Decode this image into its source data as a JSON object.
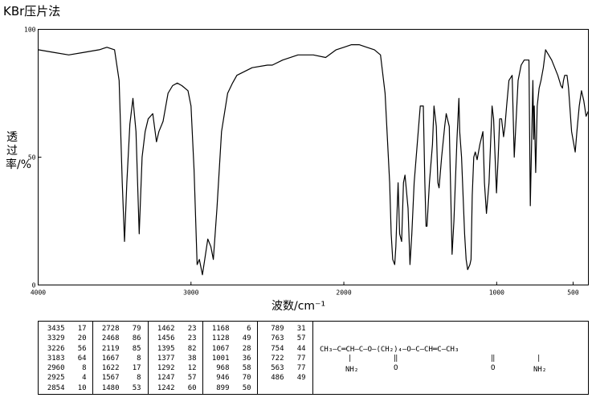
{
  "title": "KBr压片法",
  "chart_data": {
    "type": "line",
    "ylabel": "透过率/%",
    "xlabel": "波数/cm⁻¹",
    "xlim": [
      4000,
      400
    ],
    "ylim": [
      0,
      100
    ],
    "x_ticks": [
      "4000",
      "3000",
      "2000",
      "1000",
      "500"
    ],
    "x_tick_values": [
      4000,
      3000,
      2000,
      1000,
      500
    ],
    "y_ticks": [
      "0",
      "50",
      "100"
    ],
    "y_tick_values": [
      0,
      50,
      100
    ],
    "grid": false,
    "series": [
      {
        "x": [
          4000,
          3900,
          3800,
          3700,
          3600,
          3550,
          3500,
          3470,
          3450,
          3435,
          3420,
          3400,
          3380,
          3360,
          3339,
          3320,
          3300,
          3280,
          3250,
          3226,
          3210,
          3183,
          3150,
          3120,
          3090,
          3060,
          3020,
          3000,
          2980,
          2960,
          2945,
          2925,
          2910,
          2890,
          2870,
          2854,
          2830,
          2800,
          2760,
          2728,
          2700,
          2600,
          2500,
          2468,
          2400,
          2300,
          2200,
          2119,
          2050,
          2000,
          1950,
          1900,
          1850,
          1800,
          1760,
          1730,
          1700,
          1690,
          1680,
          1667,
          1660,
          1645,
          1635,
          1622,
          1610,
          1600,
          1580,
          1567,
          1555,
          1540,
          1520,
          1500,
          1480,
          1470,
          1462,
          1456,
          1440,
          1420,
          1410,
          1395,
          1385,
          1377,
          1360,
          1340,
          1330,
          1310,
          1292,
          1280,
          1260,
          1247,
          1242,
          1230,
          1210,
          1200,
          1190,
          1175,
          1168,
          1160,
          1150,
          1140,
          1128,
          1110,
          1090,
          1080,
          1067,
          1050,
          1030,
          1020,
          1001,
          990,
          980,
          968,
          955,
          946,
          935,
          920,
          899,
          885,
          860,
          840,
          820,
          800,
          789,
          780,
          770,
          763,
          758,
          754,
          745,
          735,
          722,
          710,
          695,
          680,
          660,
          640,
          620,
          600,
          580,
          570,
          563,
          555,
          540,
          530,
          510,
          486,
          475,
          460,
          445,
          430,
          415,
          400
        ],
        "y": [
          92,
          91,
          90,
          91,
          92,
          93,
          92,
          80,
          40,
          17,
          40,
          63,
          73,
          60,
          20,
          50,
          60,
          65,
          67,
          56,
          60,
          64,
          75,
          78,
          79,
          78,
          76,
          70,
          45,
          8,
          10,
          4,
          10,
          18,
          15,
          10,
          30,
          60,
          75,
          79,
          82,
          85,
          86,
          86,
          88,
          90,
          90,
          89,
          92,
          93,
          94,
          94,
          93,
          92,
          90,
          75,
          40,
          20,
          10,
          8,
          15,
          40,
          20,
          17,
          40,
          43,
          30,
          8,
          20,
          40,
          55,
          70,
          70,
          40,
          23,
          23,
          40,
          55,
          70,
          62,
          40,
          38,
          50,
          62,
          67,
          62,
          12,
          25,
          57,
          73,
          60,
          50,
          20,
          10,
          6,
          8,
          10,
          35,
          50,
          52,
          49,
          55,
          60,
          40,
          28,
          40,
          70,
          65,
          36,
          50,
          65,
          65,
          58,
          62,
          70,
          80,
          82,
          50,
          80,
          86,
          88,
          88,
          88,
          31,
          60,
          80,
          57,
          70,
          44,
          70,
          77,
          80,
          85,
          92,
          90,
          88,
          85,
          82,
          78,
          77,
          80,
          82,
          82,
          77,
          60,
          52,
          60,
          70,
          76,
          72,
          66,
          68
        ]
      }
    ]
  },
  "peak_table": {
    "columns": [
      [
        [
          "3435",
          "17"
        ],
        [
          "3329",
          "20"
        ],
        [
          "3226",
          "56"
        ],
        [
          "3183",
          "64"
        ],
        [
          "2960",
          "8"
        ],
        [
          "2925",
          "4"
        ],
        [
          "2854",
          "10"
        ]
      ],
      [
        [
          "2728",
          "79"
        ],
        [
          "2468",
          "86"
        ],
        [
          "2119",
          "85"
        ],
        [
          "1667",
          "8"
        ],
        [
          "1622",
          "17"
        ],
        [
          "1567",
          "8"
        ],
        [
          "1480",
          "53"
        ]
      ],
      [
        [
          "1462",
          "23"
        ],
        [
          "1456",
          "23"
        ],
        [
          "1395",
          "82"
        ],
        [
          "1377",
          "38"
        ],
        [
          "1292",
          "12"
        ],
        [
          "1247",
          "57"
        ],
        [
          "1242",
          "60"
        ]
      ],
      [
        [
          "1168",
          "6"
        ],
        [
          "1128",
          "49"
        ],
        [
          "1067",
          "28"
        ],
        [
          "1001",
          "36"
        ],
        [
          "968",
          "58"
        ],
        [
          "946",
          "70"
        ],
        [
          "899",
          "50"
        ]
      ],
      [
        [
          "789",
          "31"
        ],
        [
          "763",
          "57"
        ],
        [
          "754",
          "44"
        ],
        [
          "722",
          "77"
        ],
        [
          "563",
          "77"
        ],
        [
          "486",
          "49"
        ]
      ]
    ]
  },
  "structure": {
    "main_chain": "CH₃—C═CH—C—O—(CH₂)₄—O—C—CH═C—CH₃",
    "left_amine": "NH₂",
    "right_amine": "NH₂",
    "left_carbonyl": "O",
    "right_carbonyl": "O"
  }
}
